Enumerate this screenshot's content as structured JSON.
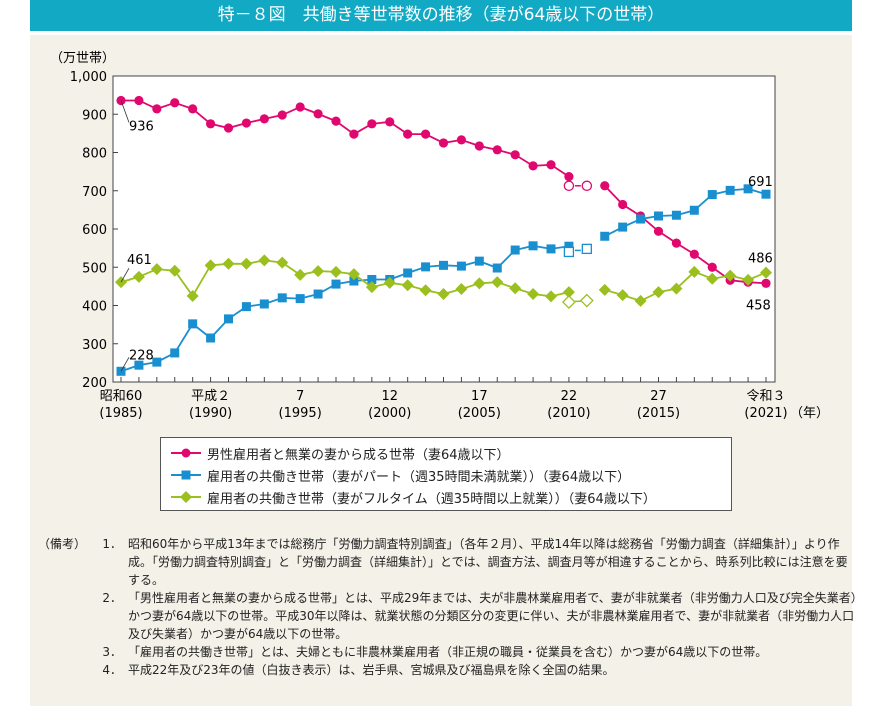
{
  "title": "特－８図　共働き等世帯数の推移（妻が64歳以下の世帯）",
  "chart_data": {
    "type": "line",
    "title": "特－８図　共働き等世帯数の推移（妻が64歳以下の世帯）",
    "ylabel": "（万世帯）",
    "xlabel": "（年）",
    "ylim": [
      200,
      1000
    ],
    "xlim": [
      1985,
      2021
    ],
    "yticks": [
      "200",
      "300",
      "400",
      "500",
      "600",
      "700",
      "800",
      "900",
      "1,000"
    ],
    "xticks": [
      {
        "year": 1985,
        "era": "昭和60",
        "label": "(1985)"
      },
      {
        "year": 1990,
        "era": "平成２",
        "label": "(1990)"
      },
      {
        "year": 1995,
        "era": "7",
        "label": "(1995)"
      },
      {
        "year": 2000,
        "era": "12",
        "label": "(2000)"
      },
      {
        "year": 2005,
        "era": "17",
        "label": "(2005)"
      },
      {
        "year": 2010,
        "era": "22",
        "label": "(2010)"
      },
      {
        "year": 2015,
        "era": "27",
        "label": "(2015)"
      },
      {
        "year": 2021,
        "era": "令和３",
        "label": "(2021)"
      }
    ],
    "grid": false,
    "legend_placement": "bottom",
    "x": [
      1985,
      1986,
      1987,
      1988,
      1989,
      1990,
      1991,
      1992,
      1993,
      1994,
      1995,
      1996,
      1997,
      1998,
      1999,
      2000,
      2001,
      2002,
      2003,
      2004,
      2005,
      2006,
      2007,
      2008,
      2009,
      2010,
      2011,
      2012,
      2013,
      2014,
      2015,
      2016,
      2017,
      2018,
      2019,
      2020,
      2021
    ],
    "series": [
      {
        "name": "男性雇用者と無業の妻から成る世帯（妻64歳以下）",
        "color": "#e0086f",
        "marker": "circle",
        "values": [
          936,
          936,
          914,
          930,
          914,
          875,
          864,
          877,
          888,
          898,
          919,
          901,
          882,
          848,
          875,
          880,
          848,
          848,
          825,
          833,
          817,
          807,
          794,
          765,
          768,
          737,
          null,
          713,
          664,
          634,
          594,
          563,
          534,
          500,
          466,
          461,
          458
        ],
        "hollow": {
          "2010": 713,
          "2011": 713
        }
      },
      {
        "name": "雇用者の共働き世帯（妻がパート（週35時間未満就業））（妻64歳以下）",
        "color": "#1a8fd0",
        "marker": "square",
        "values": [
          228,
          244,
          252,
          276,
          352,
          315,
          365,
          397,
          404,
          420,
          418,
          430,
          456,
          464,
          468,
          468,
          485,
          501,
          505,
          503,
          516,
          498,
          545,
          556,
          548,
          555,
          null,
          581,
          605,
          626,
          634,
          636,
          649,
          690,
          701,
          705,
          691
        ],
        "hollow": {
          "2010": 540,
          "2011": 548
        }
      },
      {
        "name": "雇用者の共働き世帯（妻がフルタイム（週35時間以上就業））（妻64歳以下）",
        "color": "#9bbf1e",
        "marker": "diamond",
        "values": [
          461,
          475,
          495,
          491,
          425,
          505,
          509,
          509,
          518,
          512,
          480,
          490,
          488,
          482,
          448,
          459,
          453,
          440,
          430,
          443,
          458,
          461,
          445,
          430,
          424,
          435,
          null,
          441,
          427,
          412,
          435,
          444,
          488,
          470,
          478,
          467,
          486
        ],
        "hollow": {
          "2010": 409,
          "2011": 413
        }
      }
    ],
    "annotations": [
      {
        "text": "936",
        "series": 0,
        "year": 1985
      },
      {
        "text": "228",
        "series": 1,
        "year": 1985
      },
      {
        "text": "461",
        "series": 2,
        "year": 1985
      },
      {
        "text": "691",
        "series": 1,
        "year": 2021
      },
      {
        "text": "486",
        "series": 2,
        "year": 2021
      },
      {
        "text": "458",
        "series": 0,
        "year": 2021
      }
    ]
  },
  "notes": {
    "label": "（備考）",
    "items": [
      {
        "num": "1．",
        "text": "昭和60年から平成13年までは総務庁「労働力調査特別調査」（各年２月）、平成14年以降は総務省「労働力調査（詳細集計）」より作成。「労働力調査特別調査」と「労働力調査（詳細集計）」とでは、調査方法、調査月等が相違することから、時系列比較には注意を要する。"
      },
      {
        "num": "2．",
        "text": "「男性雇用者と無業の妻から成る世帯」とは、平成29年までは、夫が非農林業雇用者で、妻が非就業者（非労働力人口及び完全失業者）かつ妻が64歳以下の世帯。平成30年以降は、就業状態の分類区分の変更に伴い、夫が非農林業雇用者で、妻が非就業者（非労働力人口及び失業者）かつ妻が64歳以下の世帯。"
      },
      {
        "num": "3．",
        "text": "「雇用者の共働き世帯」とは、夫婦ともに非農林業雇用者（非正規の職員・従業員を含む）かつ妻が64歳以下の世帯。"
      },
      {
        "num": "4．",
        "text": "平成22年及び23年の値（白抜き表示）は、岩手県、宮城県及び福島県を除く全国の結果。"
      }
    ]
  }
}
